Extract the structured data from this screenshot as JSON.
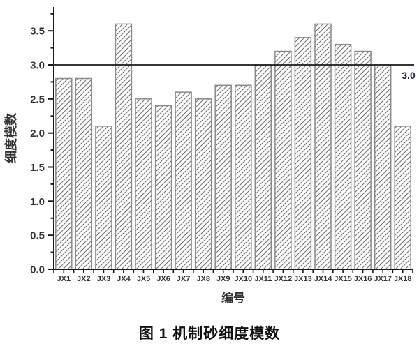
{
  "figure": {
    "caption": "图 1  机制砂细度模数"
  },
  "chart_data": {
    "type": "bar",
    "title": "图 1 机制砂细度模数",
    "xlabel": "编号",
    "ylabel": "细度模数",
    "categories": [
      "JX1",
      "JX2",
      "JX3",
      "JX4",
      "JX5",
      "JX6",
      "JX7",
      "JX8",
      "JX9",
      "JX10",
      "JX11",
      "JX12",
      "JX13",
      "JX14",
      "JX15",
      "JX16",
      "JX17",
      "JX18"
    ],
    "values": [
      2.8,
      2.8,
      2.1,
      3.6,
      2.5,
      2.4,
      2.6,
      2.5,
      2.7,
      2.7,
      3.0,
      3.2,
      3.4,
      3.6,
      3.3,
      3.2,
      3.0,
      2.1
    ],
    "ylim": [
      0,
      3.85
    ],
    "y_major_tick_step": 0.5,
    "y_minor_tick_step": 0.25,
    "y_tick_labels": [
      "0.0",
      "0.5",
      "1.0",
      "1.5",
      "2.0",
      "2.5",
      "3.0",
      "3.5"
    ],
    "reference_line": {
      "value": 3.0,
      "label": "3.0"
    },
    "grid": false,
    "legend": false,
    "bar_style": {
      "fill": "#ffffff",
      "hatch": "forward-diagonal",
      "outline_color": "#8a8a8a",
      "hatch_color": "#6f6f6f"
    },
    "colors": {
      "axis": "#1a1a1a",
      "text": "#333333",
      "reference_line": "#1a1a1a",
      "annotation_text": "#22223a"
    }
  }
}
